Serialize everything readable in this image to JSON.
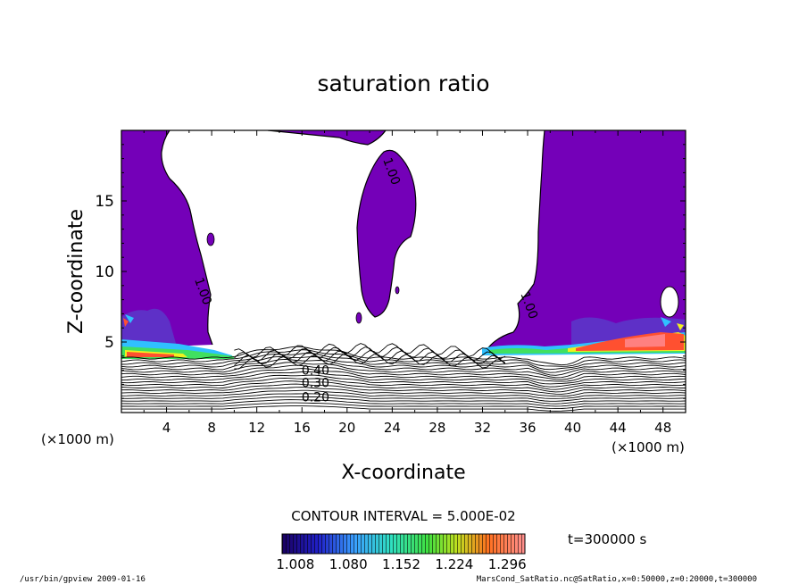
{
  "chart_data": {
    "type": "heatmap",
    "title": "saturation ratio",
    "xlabel": "X-coordinate",
    "ylabel": "Z-coordinate",
    "x_unit": "(×1000 m)",
    "y_unit": "(×1000 m)",
    "xlim": [
      0,
      50
    ],
    "ylim": [
      0,
      20
    ],
    "x_ticks": [
      4,
      8,
      12,
      16,
      20,
      24,
      28,
      32,
      36,
      40,
      44,
      48
    ],
    "y_ticks": [
      5,
      10,
      15
    ],
    "contour_interval_text": "CONTOUR INTERVAL = 5.000E-02",
    "time_text": "t=300000 s",
    "colorbar": {
      "tick_labels": [
        "1.008",
        "1.080",
        "1.152",
        "1.224",
        "1.296"
      ],
      "min": 0.99,
      "max": 1.32
    },
    "contour_labels": [
      {
        "text": "1.00",
        "x": 6.9,
        "z": 8.5
      },
      {
        "text": "1.00",
        "x": 23.6,
        "z": 17.0
      },
      {
        "text": "1.00",
        "x": 35.8,
        "z": 7.5
      },
      {
        "text": "0.40",
        "x": 17.2,
        "z": 2.7
      },
      {
        "text": "0.30",
        "x": 17.2,
        "z": 1.8
      },
      {
        "text": "0.20",
        "x": 17.2,
        "z": 0.8
      }
    ],
    "footer_left": "/usr/bin/gpview   2009-01-16",
    "footer_right": "MarsCond_SatRatio.nc@SatRatio,x=0:50000,z=0:20000,t=300000"
  }
}
